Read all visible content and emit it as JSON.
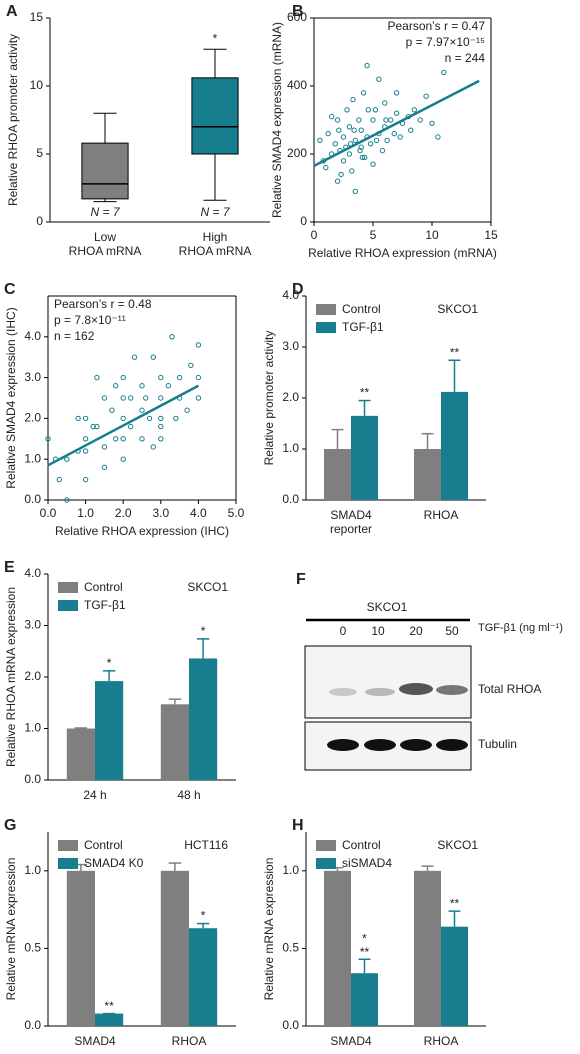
{
  "chart_data": [
    {
      "type": "box",
      "label": "A",
      "ylabel": "Relative RHOA promoter activity",
      "categories": [
        "Low\nRHOA mRNA",
        "High\nRHOA mRNA"
      ],
      "boxes": [
        {
          "min": 1.5,
          "q1": 1.7,
          "median": 2.8,
          "q3": 5.8,
          "max": 8.0
        },
        {
          "min": 1.6,
          "q1": 5.0,
          "median": 7.0,
          "q3": 10.6,
          "max": 12.7
        }
      ],
      "colors": [
        "#7f7f7f",
        "#167e8e"
      ],
      "annotations": [
        null,
        "*"
      ],
      "n_labels": [
        "N = 7",
        "N = 7"
      ],
      "ylim": [
        0,
        15
      ],
      "yticks": [
        0,
        5,
        10,
        15
      ],
      "frame": "open"
    },
    {
      "type": "scatter",
      "label": "B",
      "xlabel": "Relative RHOA expression (mRNA)",
      "ylabel": "Relative SMAD4 expression (mRNA)",
      "stats": [
        "Pearson’s r = 0.47",
        "p = 7.97×10⁻¹⁵",
        "n = 244"
      ],
      "stats_position": "upper right",
      "color": "#167e8e",
      "x": [
        0.5,
        0.8,
        1,
        1.2,
        1.5,
        1.8,
        2,
        2,
        2.2,
        2.5,
        2.5,
        2.8,
        3,
        3,
        3.2,
        3.3,
        3.5,
        3.5,
        3.8,
        4,
        4,
        4.2,
        4.3,
        4.5,
        4.5,
        4.8,
        5,
        5,
        5.2,
        5.5,
        5.5,
        5.8,
        6,
        6,
        6.2,
        6.5,
        6.8,
        7,
        7,
        7.3,
        7.5,
        8,
        8.2,
        8.5,
        9,
        9.5,
        10,
        10.5,
        11,
        1.5,
        2.3,
        2.7,
        3.4,
        3.9,
        4.6,
        5.3,
        6.1,
        2.1,
        3.1,
        4.1
      ],
      "y": [
        240,
        180,
        160,
        260,
        200,
        230,
        120,
        300,
        210,
        250,
        180,
        330,
        200,
        280,
        150,
        360,
        240,
        90,
        300,
        220,
        270,
        380,
        190,
        250,
        460,
        230,
        300,
        170,
        330,
        260,
        420,
        210,
        280,
        350,
        240,
        300,
        260,
        320,
        380,
        250,
        290,
        310,
        270,
        330,
        300,
        370,
        290,
        250,
        440,
        310,
        140,
        220,
        270,
        210,
        330,
        240,
        300,
        270,
        230,
        190
      ],
      "trend": {
        "x": [
          0,
          14
        ],
        "y": [
          165,
          415
        ]
      },
      "xlim": [
        0,
        15
      ],
      "xticks": [
        0,
        5,
        10,
        15
      ],
      "ylim": [
        0,
        600
      ],
      "yticks": [
        0,
        200,
        400,
        600
      ],
      "frame": "box"
    },
    {
      "type": "scatter",
      "label": "C",
      "xlabel": "Relative RHOA expression (IHC)",
      "ylabel": "Relative SMAD4 expression (IHC)",
      "stats": [
        "Pearson’s r = 0.48",
        "p = 7.8×10⁻¹¹",
        "n = 162"
      ],
      "stats_position": "upper left",
      "color": "#167e8e",
      "x": [
        0,
        0.3,
        0.5,
        0.5,
        0.8,
        1,
        1,
        1,
        1.2,
        1.3,
        1.5,
        1.5,
        1.5,
        1.7,
        1.8,
        2,
        2,
        2,
        2,
        2.2,
        2.3,
        2.5,
        2.5,
        2.5,
        2.7,
        2.8,
        3,
        3,
        3,
        3,
        3.2,
        3.3,
        3.5,
        3.5,
        3.7,
        3.8,
        4,
        4,
        4,
        1,
        2,
        3,
        0.8,
        1.3,
        2.2,
        2.8,
        3.4,
        1.8,
        2.6,
        0.2
      ],
      "y": [
        1.5,
        0.5,
        1,
        0,
        1.2,
        1.5,
        2,
        0.5,
        1.8,
        3,
        1.3,
        2.5,
        0.8,
        2.2,
        1.5,
        2,
        3,
        1,
        2.5,
        1.8,
        3.5,
        2.2,
        1.5,
        2.8,
        2,
        3.5,
        2.5,
        1.8,
        3,
        2,
        2.8,
        4,
        2.5,
        3,
        2.2,
        3.3,
        2.5,
        3,
        3.8,
        1.2,
        1.5,
        1.5,
        2,
        1.8,
        2.5,
        1.3,
        2,
        2.8,
        2.5,
        1
      ],
      "trend": {
        "x": [
          0,
          4
        ],
        "y": [
          0.85,
          2.8
        ]
      },
      "xlim": [
        0,
        5
      ],
      "xticks": [
        {
          "value": 0,
          "label": "0.0"
        },
        {
          "value": 1,
          "label": "1.0"
        },
        {
          "value": 2,
          "label": "2.0"
        },
        {
          "value": 3,
          "label": "3.0"
        },
        {
          "value": 4,
          "label": "4.0"
        },
        {
          "value": 5,
          "label": "5.0"
        }
      ],
      "ylim": [
        0,
        5
      ],
      "yticks": [
        {
          "value": 0,
          "label": "0.0"
        },
        {
          "value": 1,
          "label": "1.0"
        },
        {
          "value": 2,
          "label": "2.0"
        },
        {
          "value": 3,
          "label": "3.0"
        },
        {
          "value": 4,
          "label": "4.0"
        }
      ],
      "frame": "box"
    },
    {
      "type": "bar",
      "label": "D",
      "ylabel": "Relative promoter activity",
      "annotation": "SKCO1",
      "categories": [
        "SMAD4\nreporter",
        "RHOA"
      ],
      "series": [
        {
          "name": "Control",
          "color": "#7f7f7f",
          "values": [
            1.0,
            1.0
          ],
          "errors": [
            0.38,
            0.3
          ],
          "annotations": [
            null,
            null
          ]
        },
        {
          "name": "TGF-β1",
          "color": "#167e8e",
          "values": [
            1.65,
            2.12
          ],
          "errors": [
            0.3,
            0.62
          ],
          "annotations": [
            "**",
            "**"
          ]
        }
      ],
      "ylim": [
        0,
        4
      ],
      "yticks": [
        {
          "value": 0,
          "label": "0.0"
        },
        {
          "value": 1,
          "label": "1.0"
        },
        {
          "value": 2,
          "label": "2.0"
        },
        {
          "value": 3,
          "label": "3.0"
        },
        {
          "value": 4,
          "label": "4.0"
        }
      ],
      "frame": "open"
    },
    {
      "type": "bar",
      "label": "E",
      "ylabel": "Relative RHOA mRNA expression",
      "annotation": "SKCO1",
      "categories": [
        "24 h",
        "48 h"
      ],
      "series": [
        {
          "name": "Control",
          "color": "#7f7f7f",
          "values": [
            1.0,
            1.47
          ],
          "errors": [
            0.01,
            0.1
          ],
          "annotations": [
            null,
            null
          ]
        },
        {
          "name": "TGF-β1",
          "color": "#167e8e",
          "values": [
            1.92,
            2.36
          ],
          "errors": [
            0.2,
            0.38
          ],
          "annotations": [
            "*",
            "*"
          ]
        }
      ],
      "ylim": [
        0,
        4
      ],
      "yticks": [
        {
          "value": 0,
          "label": "0.0"
        },
        {
          "value": 1,
          "label": "1.0"
        },
        {
          "value": 2,
          "label": "2.0"
        },
        {
          "value": 3,
          "label": "3.0"
        },
        {
          "value": 4,
          "label": "4.0"
        }
      ],
      "frame": "open"
    },
    {
      "type": "bar",
      "label": "G",
      "ylabel": "Relative mRNA expression",
      "annotation": "HCT116",
      "categories": [
        "SMAD4",
        "RHOA"
      ],
      "series": [
        {
          "name": "Control",
          "color": "#7f7f7f",
          "values": [
            1.0,
            1.0
          ],
          "errors": [
            0.04,
            0.05
          ],
          "annotations": [
            null,
            null
          ]
        },
        {
          "name": "SMAD4 K0",
          "color": "#167e8e",
          "values": [
            0.08,
            0.63
          ],
          "errors": [
            0.0,
            0.03
          ],
          "annotations": [
            "**",
            "*"
          ]
        }
      ],
      "ylim": [
        0,
        1.25
      ],
      "yticks": [
        {
          "value": 0,
          "label": "0.0"
        },
        {
          "value": 0.5,
          "label": "0.5"
        },
        {
          "value": 1,
          "label": "1.0"
        }
      ],
      "frame": "open"
    },
    {
      "type": "bar",
      "label": "H",
      "ylabel": "Relative mRNA expression",
      "annotation": "SKCO1",
      "categories": [
        "SMAD4",
        "RHOA"
      ],
      "series": [
        {
          "name": "Control",
          "color": "#7f7f7f",
          "values": [
            1.0,
            1.0
          ],
          "errors": [
            0.02,
            0.03
          ],
          "annotations": [
            null,
            null
          ]
        },
        {
          "name": "siSMAD4",
          "color": "#167e8e",
          "values": [
            0.34,
            0.64
          ],
          "errors": [
            0.09,
            0.1
          ],
          "annotations": [
            "*\n**",
            "**"
          ]
        }
      ],
      "ylim": [
        0,
        1.25
      ],
      "yticks": [
        {
          "value": 0,
          "label": "0.0"
        },
        {
          "value": 0.5,
          "label": "0.5"
        },
        {
          "value": 1,
          "label": "1.0"
        }
      ],
      "frame": "open"
    }
  ],
  "blot": {
    "label": "F",
    "cell_line": "SKCO1",
    "treatment": "TGF-β1 (ng ml⁻¹)",
    "doses": [
      "0",
      "10",
      "20",
      "50"
    ],
    "rows": [
      "Total RHOA",
      "Tubulin"
    ]
  }
}
